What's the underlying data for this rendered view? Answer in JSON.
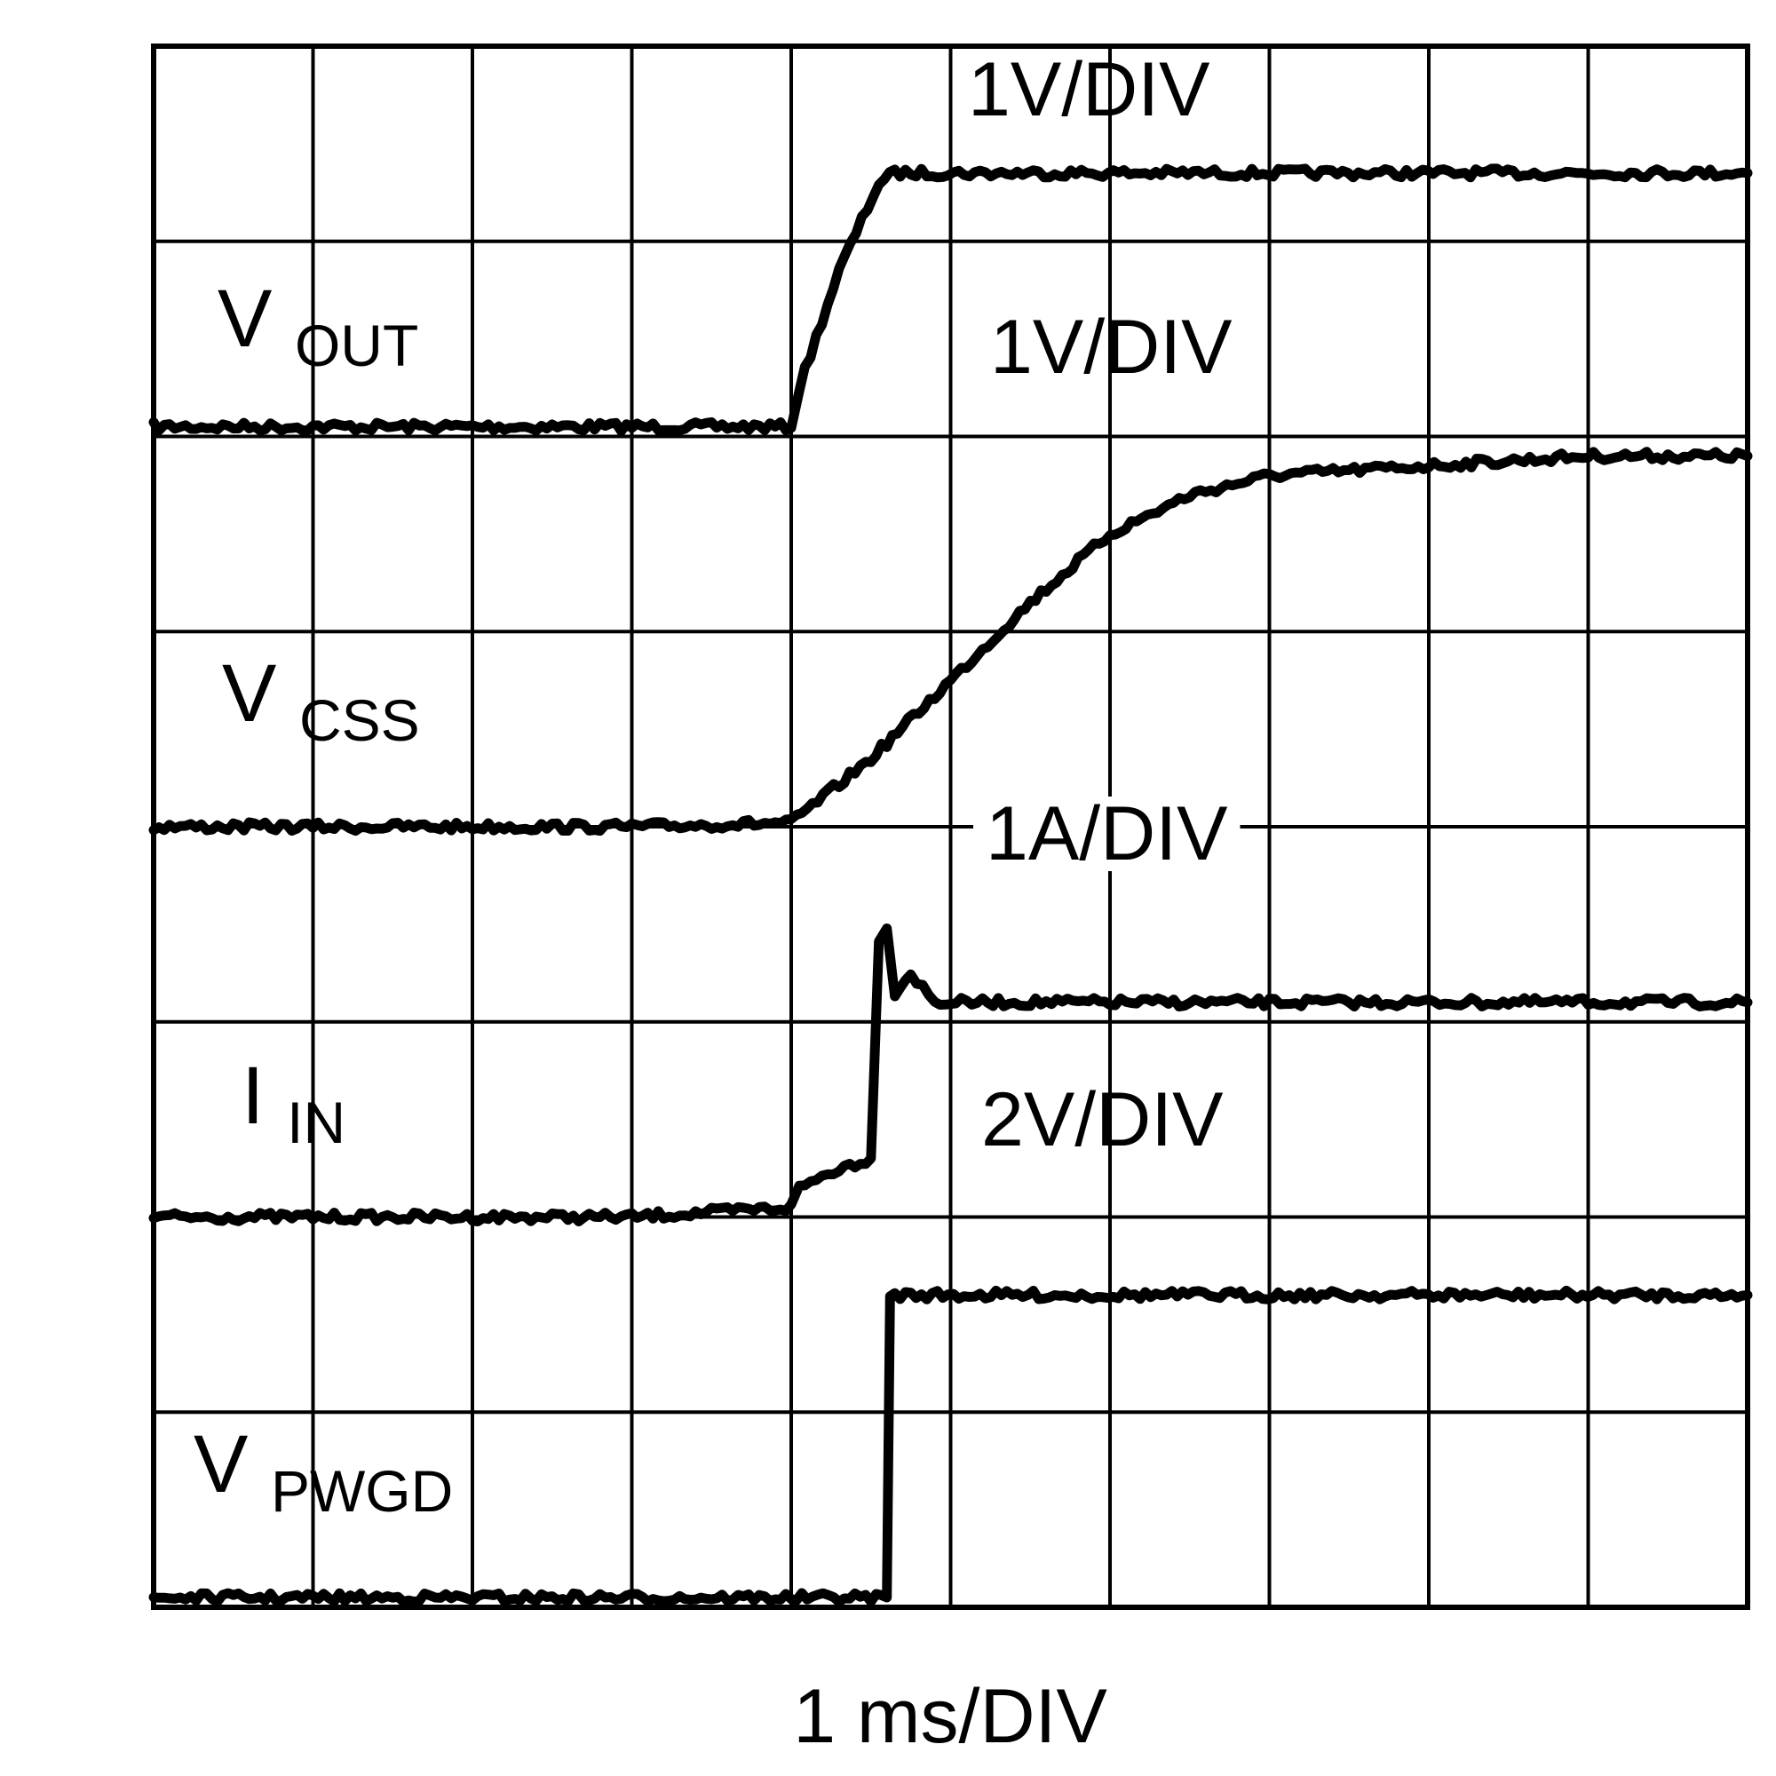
{
  "chart_data": {
    "type": "line",
    "subtype": "oscilloscope-capture",
    "x_axis": {
      "unit": "ms",
      "label": "1 ms/DIV",
      "divisions": 10,
      "range": [
        0,
        10
      ]
    },
    "y_axis": {
      "unit": "div",
      "divisions": 8,
      "range": [
        0,
        8
      ]
    },
    "grid": true,
    "trace_color": "#000000",
    "grid_color": "#000000",
    "background": "#ffffff",
    "series": [
      {
        "name": "V",
        "name_sub": "OUT",
        "scale": "1V/DIV",
        "x": [
          0,
          1,
          2,
          3,
          4,
          4.05,
          4.3,
          4.55,
          4.65,
          10
        ],
        "y": [
          6.05,
          6.05,
          6.05,
          6.05,
          6.05,
          6.25,
          6.85,
          7.3,
          7.35,
          7.35
        ]
      },
      {
        "name": "V",
        "name_sub": "CSS",
        "scale": "1V/DIV",
        "x": [
          0,
          1,
          2,
          3,
          4,
          4.5,
          5,
          5.5,
          6,
          6.5,
          7,
          8,
          9,
          10
        ],
        "y": [
          4.0,
          4.0,
          4.0,
          4.0,
          4.02,
          4.35,
          4.75,
          5.15,
          5.5,
          5.7,
          5.8,
          5.85,
          5.9,
          5.9
        ]
      },
      {
        "name": "I",
        "name_sub": "IN",
        "scale": "1A/DIV",
        "x": [
          0,
          1,
          2,
          3,
          4,
          4.05,
          4.3,
          4.5,
          4.55,
          4.6,
          4.65,
          4.75,
          4.9,
          5,
          10
        ],
        "y": [
          2.0,
          2.0,
          2.0,
          2.0,
          2.05,
          2.15,
          2.25,
          2.3,
          3.4,
          3.5,
          3.15,
          3.25,
          3.1,
          3.1,
          3.1
        ]
      },
      {
        "name": "V",
        "name_sub": "PWGD",
        "scale": "2V/DIV",
        "x": [
          0,
          1,
          2,
          3,
          4,
          4.6,
          4.62,
          4.65,
          10
        ],
        "y": [
          0.05,
          0.05,
          0.05,
          0.05,
          0.05,
          0.05,
          1.6,
          1.6,
          1.6
        ]
      }
    ]
  }
}
